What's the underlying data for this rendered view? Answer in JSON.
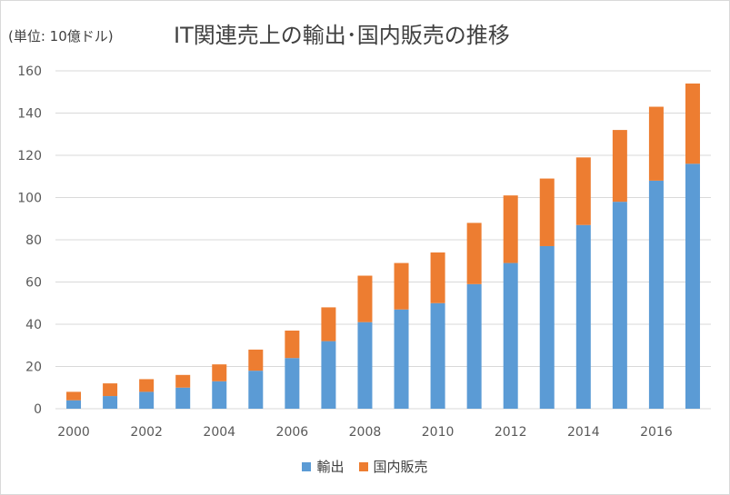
{
  "unit_label": "(単位: 10億ドル)",
  "colors": {
    "export": "#5b9bd5",
    "domestic": "#ed7d31",
    "grid": "#d9d9d9",
    "text": "#595959"
  },
  "chart_data": {
    "type": "bar",
    "stacked": true,
    "title": "IT関連売上の輸出･国内販売の推移",
    "xlabel": "",
    "ylabel": "",
    "ylim": [
      0,
      160
    ],
    "yticks": [
      0,
      20,
      40,
      60,
      80,
      100,
      120,
      140,
      160
    ],
    "categories": [
      "2000",
      "2001",
      "2002",
      "2003",
      "2004",
      "2005",
      "2006",
      "2007",
      "2008",
      "2009",
      "2010",
      "2011",
      "2012",
      "2013",
      "2014",
      "2015",
      "2016",
      "2017"
    ],
    "xtick_labels": [
      "2000",
      "",
      "2002",
      "",
      "2004",
      "",
      "2006",
      "",
      "2008",
      "",
      "2010",
      "",
      "2012",
      "",
      "2014",
      "",
      "2016",
      ""
    ],
    "series": [
      {
        "name": "輸出",
        "color": "#5b9bd5",
        "values": [
          4,
          6,
          8,
          10,
          13,
          18,
          24,
          32,
          41,
          47,
          50,
          59,
          69,
          77,
          87,
          98,
          108,
          116
        ]
      },
      {
        "name": "国内販売",
        "color": "#ed7d31",
        "values": [
          4,
          6,
          6,
          6,
          8,
          10,
          13,
          16,
          22,
          22,
          24,
          29,
          32,
          32,
          32,
          34,
          35,
          38
        ]
      }
    ],
    "grid": true,
    "legend_position": "bottom"
  }
}
